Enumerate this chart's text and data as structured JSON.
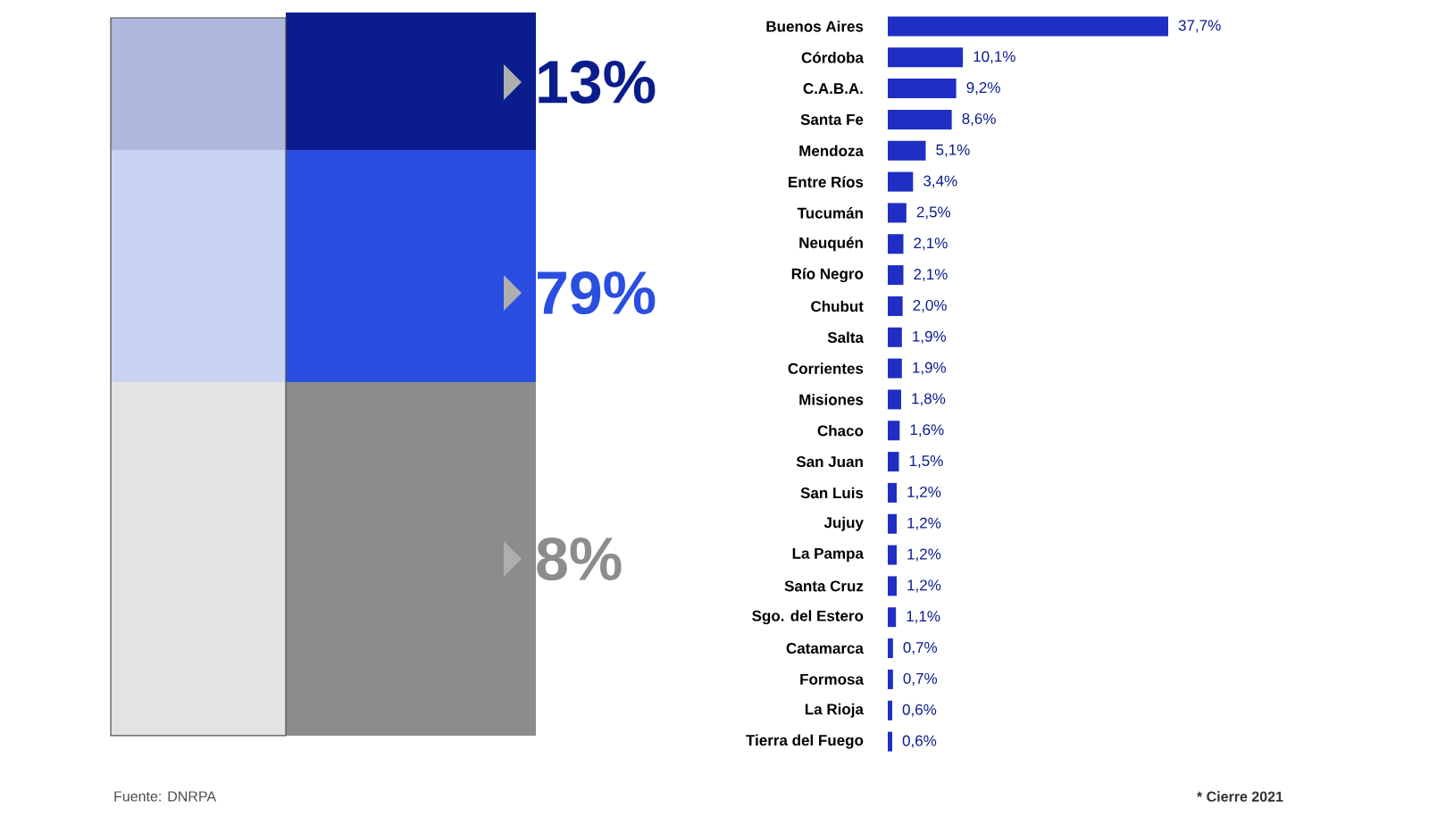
{
  "chart_data": {
    "type": "bar",
    "orientation": "horizontal",
    "categories": [
      "Buenos Aires",
      "Córdoba",
      "C.A.B.A.",
      "Santa Fe",
      "Mendoza",
      "Entre Ríos",
      "Tucumán",
      "Neuquén",
      "Río Negro",
      "Chubut",
      "Salta",
      "Corrientes",
      "Misiones",
      "Chaco",
      "San Juan",
      "San Luis",
      "Jujuy",
      "La Pampa",
      "Santa Cruz",
      "Sgo. del Estero",
      "Catamarca",
      "Formosa",
      "La Rioja",
      "Tierra del Fuego"
    ],
    "values": [
      37.7,
      10.1,
      9.2,
      8.6,
      5.1,
      3.4,
      2.5,
      2.1,
      2.1,
      2.0,
      1.9,
      1.9,
      1.8,
      1.6,
      1.5,
      1.2,
      1.2,
      1.2,
      1.2,
      1.1,
      0.7,
      0.7,
      0.6,
      0.6
    ],
    "value_labels": [
      "37,7%",
      "10,1%",
      "9,2%",
      "8,6%",
      "5,1%",
      "3,4%",
      "2,5%",
      "2,1%",
      "2,1%",
      "2,0%",
      "1,9%",
      "1,9%",
      "1,8%",
      "1,6%",
      "1,5%",
      "1,2%",
      "1,2%",
      "1,2%",
      "1,2%",
      "1,1%",
      "0,7%",
      "0,7%",
      "0,6%",
      "0,6%"
    ],
    "color": "#1f2fc4",
    "annotations": [
      "13%",
      "79%",
      "8%",
      "Fuente: DNRPA",
      "* Cierre 2021"
    ]
  }
}
